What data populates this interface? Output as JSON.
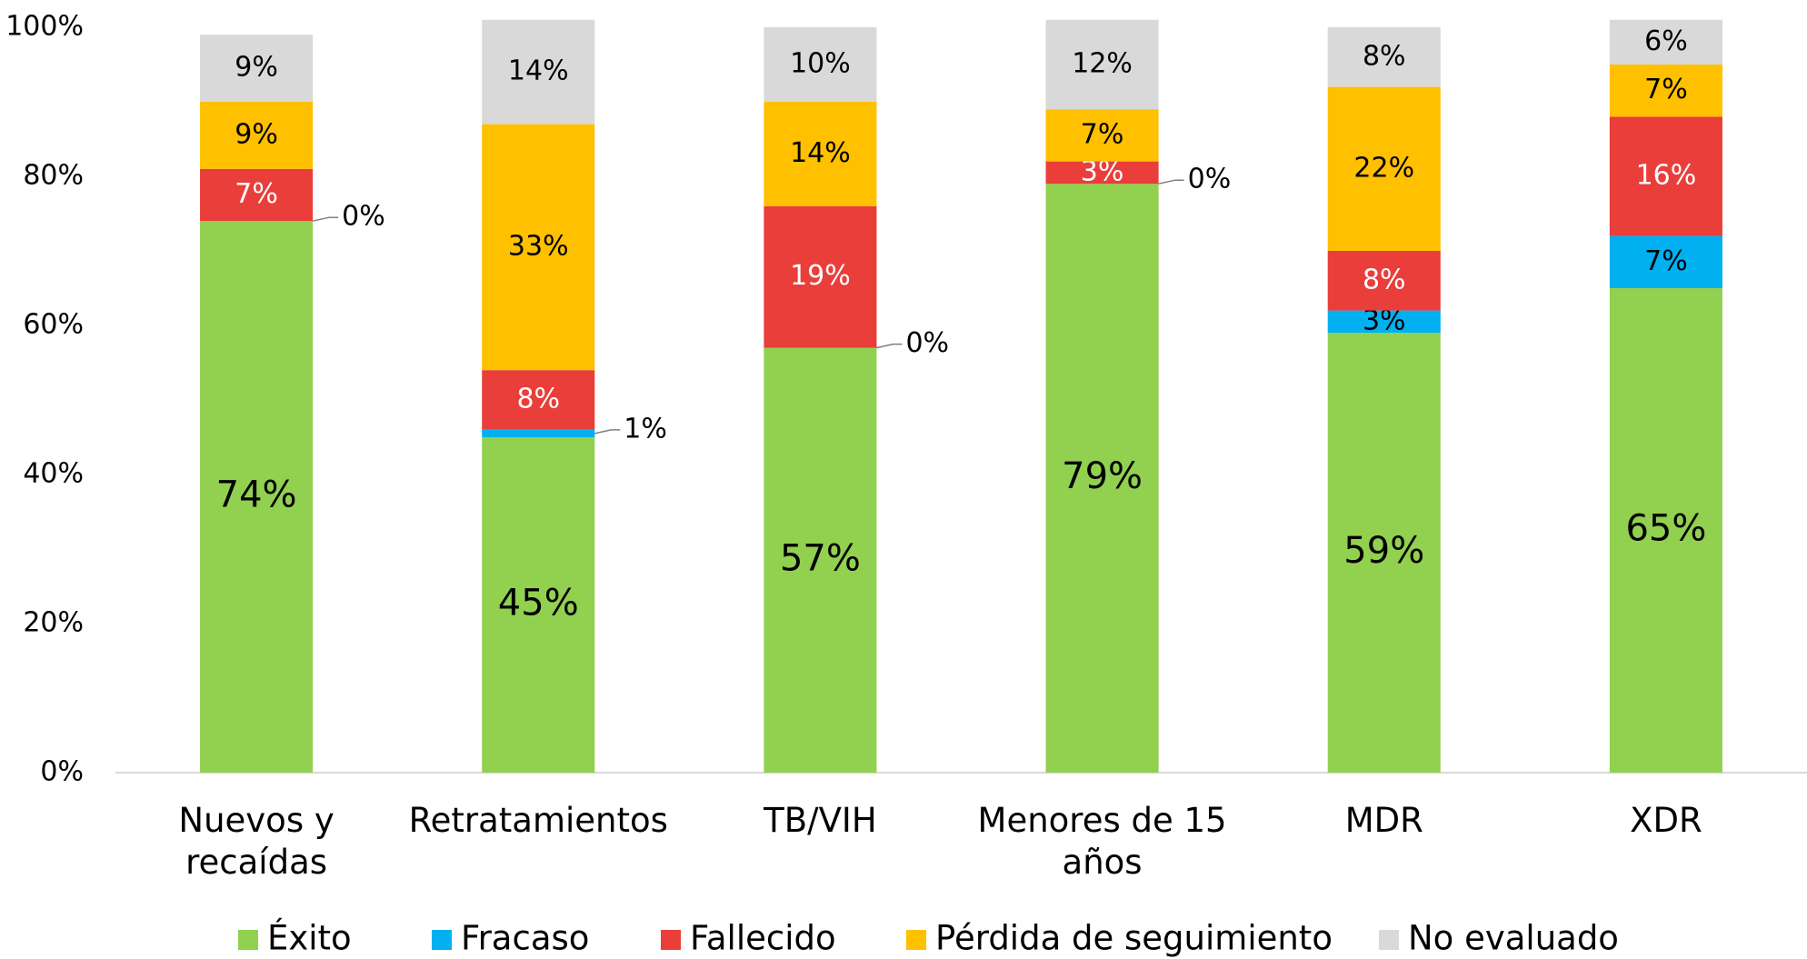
{
  "chart_data": {
    "type": "stacked_bar",
    "categories": [
      "Nuevos y recaídas",
      "Retratamientos",
      "TB/VIH",
      "Menores de 15 años",
      "MDR",
      "XDR"
    ],
    "series": [
      {
        "name": "Éxito",
        "color": "#92d050",
        "values": [
          74,
          45,
          57,
          79,
          59,
          65
        ],
        "value_labels": [
          "74%",
          "45%",
          "57%",
          "79%",
          "59%",
          "65%"
        ]
      },
      {
        "name": "Fracaso",
        "color": "#00b0f0",
        "values": [
          0,
          1,
          0,
          0,
          3,
          7
        ],
        "value_labels": [
          "0%",
          "1%",
          "0%",
          "0%",
          "3%",
          "7%"
        ]
      },
      {
        "name": "Fallecido",
        "color": "#e93e3a",
        "values": [
          7,
          8,
          19,
          3,
          8,
          16
        ],
        "value_labels": [
          "7%",
          "8%",
          "19%",
          "3%",
          "8%",
          "16%"
        ]
      },
      {
        "name": "Pérdida de seguimiento",
        "color": "#ffc000",
        "values": [
          9,
          33,
          14,
          7,
          22,
          7
        ],
        "value_labels": [
          "9%",
          "33%",
          "14%",
          "7%",
          "22%",
          "7%"
        ]
      },
      {
        "name": "No evaluado",
        "color": "#d9d9d9",
        "values": [
          9,
          14,
          10,
          12,
          8,
          6
        ],
        "value_labels": [
          "9%",
          "14%",
          "10%",
          "12%",
          "8%",
          "6%"
        ]
      }
    ],
    "ylim": [
      0,
      100
    ],
    "yticks": [
      {
        "value": 0,
        "label": "0%"
      },
      {
        "value": 20,
        "label": "20%"
      },
      {
        "value": 40,
        "label": "40%"
      },
      {
        "value": 60,
        "label": "60%"
      },
      {
        "value": 80,
        "label": "80%"
      },
      {
        "value": 100,
        "label": "100%"
      }
    ],
    "legend": "bottom"
  }
}
